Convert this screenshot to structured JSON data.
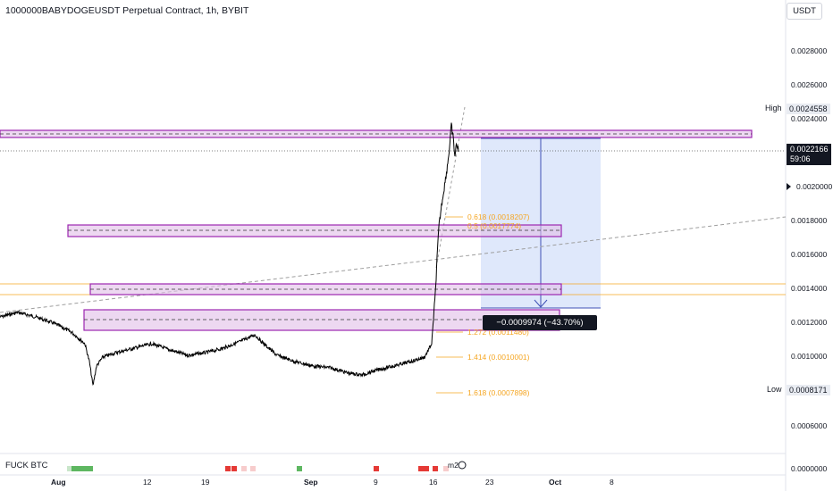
{
  "header": {
    "title": "1000000BABYDOGEUSDT Perpetual Contract, 1h, BYBIT",
    "currency_button": "USDT"
  },
  "price_axis": {
    "ticks": [
      "0.0028000",
      "0.0026000",
      "0.0024000",
      "0.0020000",
      "0.0018000",
      "0.0016000",
      "0.0014000",
      "0.0012000",
      "0.0010000",
      "0.0006000",
      "0.0000000"
    ],
    "high_label": "High",
    "high_value": "0.0024558",
    "low_label": "Low",
    "low_value": "0.0008171",
    "current_price": "0.0022166",
    "countdown": "59:06"
  },
  "time_axis": {
    "ticks": [
      "Aug",
      "12",
      "19",
      "Sep",
      "9",
      "16",
      "23",
      "Oct",
      "8"
    ]
  },
  "fib_levels": [
    {
      "label": "0.618 (0.0018207)"
    },
    {
      "label": "0.5 (0.0017774)"
    },
    {
      "label": "1.272 (0.0011480)"
    },
    {
      "label": "1.414 (0.0010001)"
    },
    {
      "label": "1.618 (0.0007898)"
    }
  ],
  "measure_tool": {
    "text": "−0.0009974 (−43.70%) −9,974"
  },
  "indicator": {
    "name": "FUCK BTC",
    "m2_label": "m2"
  },
  "colors": {
    "candle": "#000000",
    "zone_fill": "#e1bee7",
    "zone_border": "#9c27b0",
    "measure_fill": "#dbe6fb",
    "measure_line": "#3f51b5",
    "fib": "#f5a623",
    "trend": "#9e9e9e"
  }
}
